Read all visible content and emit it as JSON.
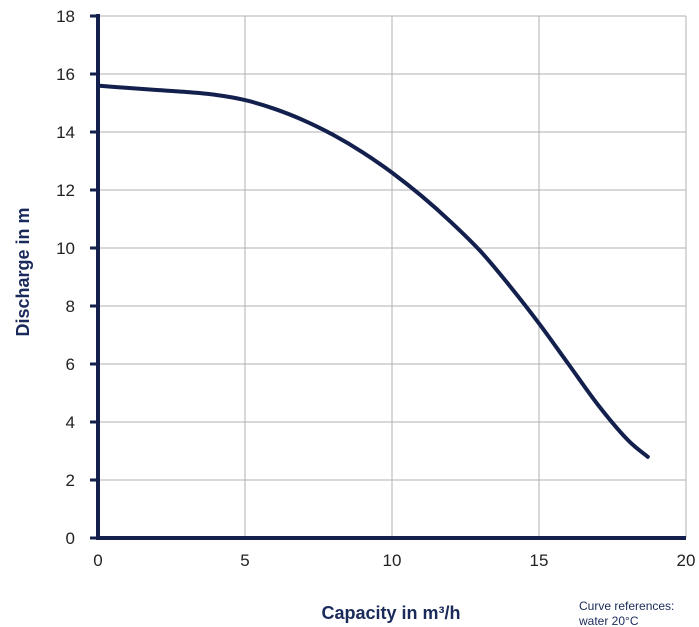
{
  "chart_data": {
    "type": "line",
    "xlabel": "Capacity in m³/h",
    "ylabel": "Discharge in m",
    "xlim": [
      0,
      20
    ],
    "ylim": [
      0,
      18
    ],
    "x_ticks": [
      "0",
      "5",
      "10",
      "15",
      "20"
    ],
    "y_ticks": [
      "0",
      "2",
      "4",
      "6",
      "8",
      "10",
      "12",
      "14",
      "16",
      "18"
    ],
    "grid": true,
    "series": [
      {
        "color": "#13204d",
        "x": [
          0,
          1,
          2,
          3,
          4,
          5,
          6,
          7,
          8,
          9,
          10,
          11,
          12,
          13,
          14,
          15,
          16,
          17,
          18,
          18.7
        ],
        "y": [
          15.6,
          15.52,
          15.45,
          15.38,
          15.28,
          15.1,
          14.8,
          14.4,
          13.9,
          13.3,
          12.6,
          11.8,
          10.9,
          9.9,
          8.7,
          7.4,
          6.0,
          4.6,
          3.4,
          2.8
        ]
      }
    ],
    "annotations": [
      "Curve references:",
      "water 20°C"
    ]
  }
}
